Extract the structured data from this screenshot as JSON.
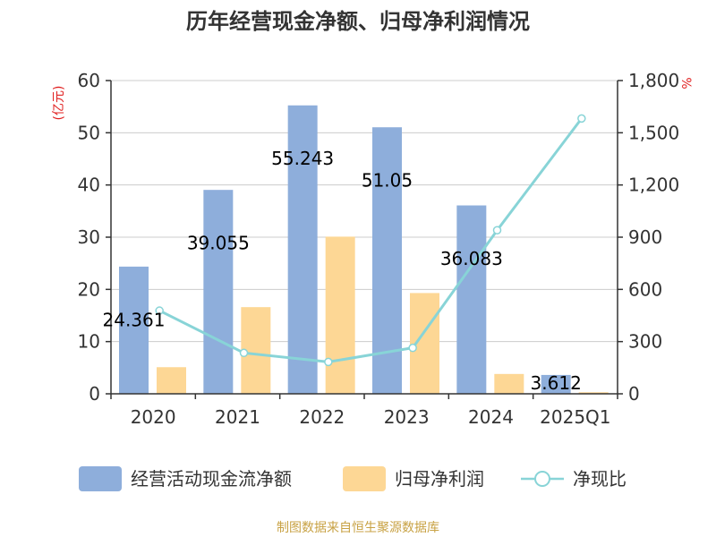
{
  "chart_data": {
    "type": "bar",
    "title": "历年经营现金净额、归母净利润情况",
    "categories": [
      "2020",
      "2021",
      "2022",
      "2023",
      "2024",
      "2025Q1"
    ],
    "y_left": {
      "unit": "(亿元)",
      "range": [
        0,
        60
      ],
      "ticks": [
        "0",
        "10",
        "20",
        "30",
        "40",
        "50",
        "60"
      ]
    },
    "y_right": {
      "unit": "%",
      "range": [
        0,
        1800
      ],
      "ticks": [
        "0",
        "300",
        "600",
        "900",
        "1,200",
        "1,500",
        "1,800"
      ]
    },
    "series": [
      {
        "name": "经营活动现金流净额",
        "type": "bar",
        "axis": "left",
        "color": "#8eaedb",
        "values": [
          24.361,
          39.055,
          55.243,
          51.05,
          36.083,
          3.612
        ],
        "labels": [
          "24.361",
          "39.055",
          "55.243",
          "51.05",
          "36.083",
          "3.612"
        ]
      },
      {
        "name": "归母净利润",
        "type": "bar",
        "axis": "left",
        "color": "#fdd795",
        "values": [
          5.1,
          16.6,
          30.1,
          19.3,
          3.8,
          0.3
        ]
      },
      {
        "name": "净现比",
        "type": "line",
        "axis": "right",
        "color": "#88d4d7",
        "values": [
          478,
          235,
          183,
          264,
          940,
          1582
        ]
      }
    ],
    "grid": true,
    "legend_position": "bottom"
  },
  "source": "制图数据来自恒生聚源数据库"
}
